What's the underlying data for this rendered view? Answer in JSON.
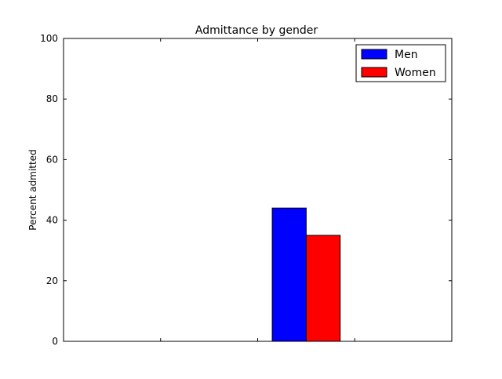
{
  "chart_data": {
    "type": "bar",
    "title": "Admittance by gender",
    "xlabel": "",
    "ylabel": "Percent admitted",
    "categories": [
      "",
      "",
      "",
      ""
    ],
    "series": [
      {
        "name": "Men",
        "values": [
          0,
          0,
          44,
          0
        ],
        "color": "#0000ff"
      },
      {
        "name": "Women",
        "values": [
          0,
          0,
          35,
          0
        ],
        "color": "#ff0000"
      }
    ],
    "ylim": [
      0,
      100
    ],
    "yticks": [
      "0",
      "20",
      "40",
      "60",
      "80",
      "100"
    ],
    "legend": "top-right",
    "grid": false
  }
}
